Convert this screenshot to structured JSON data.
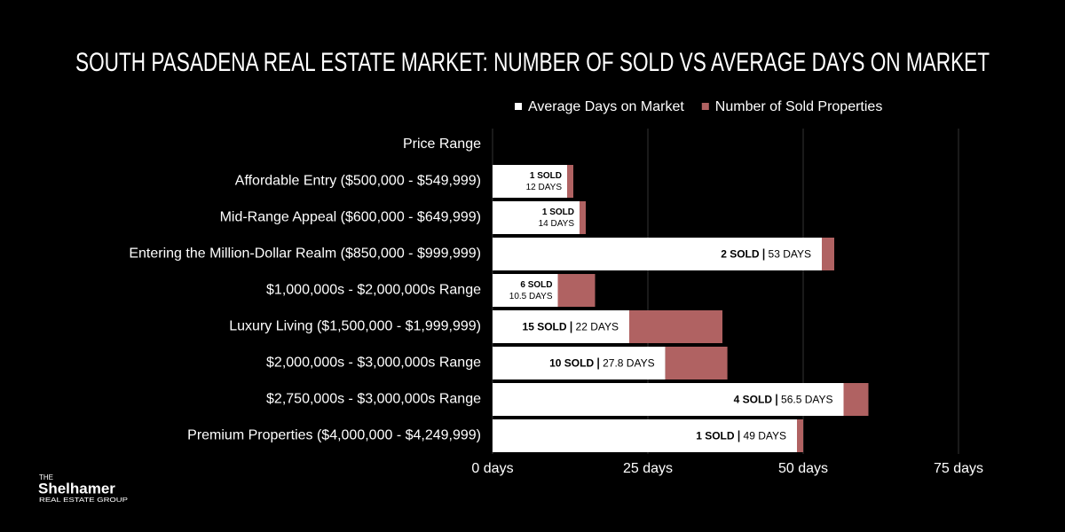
{
  "chart_data": {
    "type": "stacked-barh",
    "title": "SOUTH PASADENA REAL ESTATE MARKET: NUMBER OF SOLD VS AVERAGE DAYS ON MARKET",
    "y_label": "Price Range",
    "categories": [
      "Affordable Entry ($500,000 - $549,999)",
      "Mid-Range Appeal ($600,000 - $649,999)",
      "Entering the Million-Dollar Realm ($850,000 - $999,999)",
      "$1,000,000s - $2,000,000s Range",
      "Luxury Living ($1,500,000 - $1,999,999)",
      "$2,000,000s - $3,000,000s Range",
      "$2,750,000s - $3,000,000s Range",
      "Premium Properties ($4,000,000 - $4,249,999)"
    ],
    "series": [
      {
        "name": "Average Days on Market",
        "color": "#ffffff",
        "values": [
          12,
          14,
          53,
          10.5,
          22,
          27.8,
          56.5,
          49
        ],
        "value_labels": [
          "12 DAYS",
          "14 DAYS",
          "53 DAYS",
          "10.5 DAYS",
          "22 DAYS",
          "27.8 DAYS",
          "56.5 DAYS",
          "49 DAYS"
        ]
      },
      {
        "name": "Number of Sold Properties",
        "color": "#b06262",
        "values": [
          1,
          1,
          2,
          6,
          15,
          10,
          4,
          1
        ],
        "value_labels": [
          "1 SOLD",
          "1 SOLD",
          "2 SOLD",
          "6 SOLD",
          "15 SOLD",
          "10 SOLD",
          "4 SOLD",
          "1 SOLD"
        ]
      }
    ],
    "xlim": [
      0,
      75
    ],
    "xticks": [
      {
        "value": 0,
        "label": "0 days"
      },
      {
        "value": 25,
        "label": "25 days"
      },
      {
        "value": 50,
        "label": "50 days"
      },
      {
        "value": 75,
        "label": "75 days"
      }
    ],
    "grid": true
  },
  "logo": {
    "top": "THE",
    "name": "Shelhamer",
    "bottom": "REAL ESTATE GROUP"
  }
}
